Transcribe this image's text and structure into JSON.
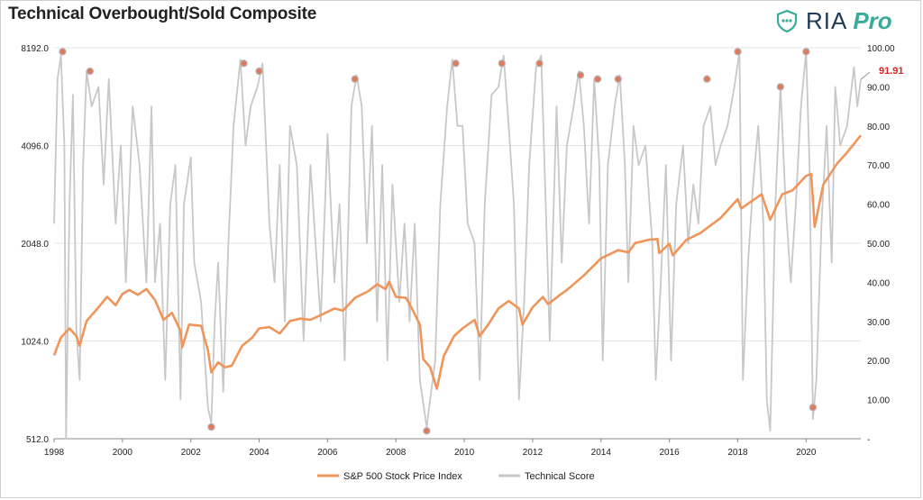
{
  "title": "Technical Overbought/Sold Composite",
  "logo": {
    "brand": "RIA",
    "suffix": "Pro",
    "icon": "shield-chat-icon",
    "brand_color": "#1f3b57",
    "accent_color": "#3aaa9a"
  },
  "chart_data": {
    "type": "line",
    "title": "Technical Overbought/Sold Composite",
    "x_range": [
      1998,
      2021.6
    ],
    "x_ticks": [
      "1998",
      "2000",
      "2002",
      "2004",
      "2006",
      "2008",
      "2010",
      "2012",
      "2014",
      "2016",
      "2018",
      "2020"
    ],
    "y_left": {
      "scale": "log2",
      "range": [
        512,
        8192
      ],
      "ticks": [
        "512.0",
        "1024.0",
        "2048.0",
        "4096.0",
        "8192.0"
      ]
    },
    "y_right": {
      "range": [
        0,
        100
      ],
      "ticks": [
        "-",
        "10.00",
        "20.00",
        "30.00",
        "40.00",
        "50.00",
        "60.00",
        "70.00",
        "80.00",
        "90.00",
        "100.00"
      ]
    },
    "grid": true,
    "legend_position": "bottom",
    "last_value_label": "91.91",
    "last_value_color": "#e02020",
    "series": [
      {
        "name": "S&P 500 Stock Price Index",
        "axis": "left",
        "color": "#f0955a",
        "points": [
          [
            1998.0,
            925
          ],
          [
            1998.2,
            1050
          ],
          [
            1998.45,
            1120
          ],
          [
            1998.65,
            1060
          ],
          [
            1998.75,
            990
          ],
          [
            1998.95,
            1180
          ],
          [
            1999.3,
            1300
          ],
          [
            1999.55,
            1400
          ],
          [
            1999.8,
            1320
          ],
          [
            2000.0,
            1430
          ],
          [
            2000.2,
            1470
          ],
          [
            2000.45,
            1420
          ],
          [
            2000.7,
            1480
          ],
          [
            2000.95,
            1370
          ],
          [
            2001.2,
            1190
          ],
          [
            2001.45,
            1250
          ],
          [
            2001.7,
            1100
          ],
          [
            2001.75,
            980
          ],
          [
            2001.95,
            1150
          ],
          [
            2002.3,
            1140
          ],
          [
            2002.5,
            960
          ],
          [
            2002.6,
            820
          ],
          [
            2002.8,
            880
          ],
          [
            2003.0,
            850
          ],
          [
            2003.2,
            860
          ],
          [
            2003.5,
            990
          ],
          [
            2003.8,
            1050
          ],
          [
            2004.0,
            1120
          ],
          [
            2004.3,
            1130
          ],
          [
            2004.6,
            1080
          ],
          [
            2004.9,
            1180
          ],
          [
            2005.2,
            1200
          ],
          [
            2005.5,
            1190
          ],
          [
            2005.8,
            1230
          ],
          [
            2006.2,
            1290
          ],
          [
            2006.45,
            1270
          ],
          [
            2006.8,
            1390
          ],
          [
            2007.2,
            1460
          ],
          [
            2007.45,
            1530
          ],
          [
            2007.7,
            1480
          ],
          [
            2007.8,
            1560
          ],
          [
            2008.0,
            1400
          ],
          [
            2008.3,
            1390
          ],
          [
            2008.5,
            1270
          ],
          [
            2008.7,
            1150
          ],
          [
            2008.8,
            900
          ],
          [
            2009.0,
            850
          ],
          [
            2009.2,
            730
          ],
          [
            2009.4,
            920
          ],
          [
            2009.7,
            1060
          ],
          [
            2009.95,
            1120
          ],
          [
            2010.3,
            1190
          ],
          [
            2010.45,
            1060
          ],
          [
            2010.7,
            1150
          ],
          [
            2011.0,
            1290
          ],
          [
            2011.3,
            1360
          ],
          [
            2011.6,
            1290
          ],
          [
            2011.7,
            1150
          ],
          [
            2012.0,
            1300
          ],
          [
            2012.3,
            1400
          ],
          [
            2012.45,
            1330
          ],
          [
            2012.8,
            1420
          ],
          [
            2013.0,
            1470
          ],
          [
            2013.5,
            1630
          ],
          [
            2014.0,
            1840
          ],
          [
            2014.5,
            1950
          ],
          [
            2014.8,
            1920
          ],
          [
            2015.0,
            2050
          ],
          [
            2015.4,
            2100
          ],
          [
            2015.65,
            2110
          ],
          [
            2015.7,
            1910
          ],
          [
            2016.0,
            2040
          ],
          [
            2016.1,
            1880
          ],
          [
            2016.5,
            2100
          ],
          [
            2016.9,
            2200
          ],
          [
            2017.5,
            2450
          ],
          [
            2018.0,
            2800
          ],
          [
            2018.1,
            2620
          ],
          [
            2018.7,
            2900
          ],
          [
            2018.95,
            2420
          ],
          [
            2019.3,
            2900
          ],
          [
            2019.6,
            2980
          ],
          [
            2020.0,
            3300
          ],
          [
            2020.15,
            3350
          ],
          [
            2020.25,
            2300
          ],
          [
            2020.5,
            3100
          ],
          [
            2020.9,
            3600
          ],
          [
            2021.2,
            3900
          ],
          [
            2021.6,
            4400
          ]
        ]
      },
      {
        "name": "Technical Score",
        "axis": "right",
        "color": "#c8c8c8",
        "points": [
          [
            1998.0,
            55
          ],
          [
            1998.1,
            92
          ],
          [
            1998.2,
            98
          ],
          [
            1998.3,
            75
          ],
          [
            1998.35,
            0
          ],
          [
            1998.45,
            60
          ],
          [
            1998.55,
            88
          ],
          [
            1998.65,
            28
          ],
          [
            1998.75,
            15
          ],
          [
            1998.85,
            70
          ],
          [
            1998.95,
            94
          ],
          [
            1999.1,
            85
          ],
          [
            1999.3,
            90
          ],
          [
            1999.45,
            65
          ],
          [
            1999.6,
            92
          ],
          [
            1999.8,
            55
          ],
          [
            1999.95,
            75
          ],
          [
            2000.1,
            40
          ],
          [
            2000.3,
            85
          ],
          [
            2000.5,
            70
          ],
          [
            2000.7,
            40
          ],
          [
            2000.85,
            85
          ],
          [
            2000.95,
            40
          ],
          [
            2001.1,
            55
          ],
          [
            2001.25,
            15
          ],
          [
            2001.4,
            60
          ],
          [
            2001.55,
            70
          ],
          [
            2001.7,
            10
          ],
          [
            2001.8,
            60
          ],
          [
            2002.0,
            72
          ],
          [
            2002.1,
            45
          ],
          [
            2002.3,
            35
          ],
          [
            2002.5,
            8
          ],
          [
            2002.6,
            4
          ],
          [
            2002.7,
            30
          ],
          [
            2002.8,
            45
          ],
          [
            2002.95,
            12
          ],
          [
            2003.1,
            50
          ],
          [
            2003.25,
            80
          ],
          [
            2003.45,
            97
          ],
          [
            2003.6,
            75
          ],
          [
            2003.75,
            85
          ],
          [
            2003.95,
            90
          ],
          [
            2004.1,
            96
          ],
          [
            2004.3,
            55
          ],
          [
            2004.45,
            40
          ],
          [
            2004.6,
            70
          ],
          [
            2004.75,
            30
          ],
          [
            2004.9,
            80
          ],
          [
            2005.1,
            70
          ],
          [
            2005.3,
            25
          ],
          [
            2005.5,
            70
          ],
          [
            2005.65,
            50
          ],
          [
            2005.8,
            30
          ],
          [
            2006.0,
            78
          ],
          [
            2006.2,
            40
          ],
          [
            2006.35,
            60
          ],
          [
            2006.5,
            20
          ],
          [
            2006.7,
            85
          ],
          [
            2006.85,
            93
          ],
          [
            2007.0,
            85
          ],
          [
            2007.15,
            50
          ],
          [
            2007.3,
            80
          ],
          [
            2007.45,
            30
          ],
          [
            2007.6,
            70
          ],
          [
            2007.75,
            20
          ],
          [
            2007.9,
            65
          ],
          [
            2008.1,
            35
          ],
          [
            2008.25,
            55
          ],
          [
            2008.4,
            30
          ],
          [
            2008.55,
            55
          ],
          [
            2008.7,
            15
          ],
          [
            2008.9,
            3
          ],
          [
            2009.0,
            10
          ],
          [
            2009.15,
            20
          ],
          [
            2009.3,
            60
          ],
          [
            2009.5,
            85
          ],
          [
            2009.65,
            97
          ],
          [
            2009.8,
            80
          ],
          [
            2009.95,
            80
          ],
          [
            2010.1,
            55
          ],
          [
            2010.3,
            50
          ],
          [
            2010.45,
            15
          ],
          [
            2010.6,
            60
          ],
          [
            2010.8,
            88
          ],
          [
            2011.0,
            90
          ],
          [
            2011.15,
            98
          ],
          [
            2011.3,
            80
          ],
          [
            2011.45,
            60
          ],
          [
            2011.6,
            10
          ],
          [
            2011.75,
            35
          ],
          [
            2011.9,
            70
          ],
          [
            2012.1,
            95
          ],
          [
            2012.25,
            98
          ],
          [
            2012.4,
            55
          ],
          [
            2012.5,
            25
          ],
          [
            2012.7,
            85
          ],
          [
            2012.85,
            45
          ],
          [
            2013.0,
            75
          ],
          [
            2013.2,
            85
          ],
          [
            2013.35,
            94
          ],
          [
            2013.5,
            80
          ],
          [
            2013.65,
            55
          ],
          [
            2013.8,
            92
          ],
          [
            2013.95,
            70
          ],
          [
            2014.05,
            20
          ],
          [
            2014.2,
            70
          ],
          [
            2014.4,
            85
          ],
          [
            2014.55,
            93
          ],
          [
            2014.7,
            70
          ],
          [
            2014.8,
            40
          ],
          [
            2014.95,
            80
          ],
          [
            2015.1,
            70
          ],
          [
            2015.3,
            75
          ],
          [
            2015.5,
            50
          ],
          [
            2015.6,
            15
          ],
          [
            2015.75,
            40
          ],
          [
            2015.9,
            70
          ],
          [
            2016.05,
            20
          ],
          [
            2016.2,
            60
          ],
          [
            2016.4,
            75
          ],
          [
            2016.55,
            50
          ],
          [
            2016.7,
            65
          ],
          [
            2016.85,
            55
          ],
          [
            2017.0,
            80
          ],
          [
            2017.2,
            85
          ],
          [
            2017.35,
            70
          ],
          [
            2017.5,
            75
          ],
          [
            2017.7,
            80
          ],
          [
            2017.9,
            90
          ],
          [
            2018.05,
            99
          ],
          [
            2018.15,
            15
          ],
          [
            2018.3,
            45
          ],
          [
            2018.45,
            65
          ],
          [
            2018.6,
            80
          ],
          [
            2018.75,
            55
          ],
          [
            2018.85,
            10
          ],
          [
            2018.95,
            2
          ],
          [
            2019.1,
            60
          ],
          [
            2019.25,
            90
          ],
          [
            2019.4,
            60
          ],
          [
            2019.55,
            40
          ],
          [
            2019.7,
            60
          ],
          [
            2019.85,
            85
          ],
          [
            2020.0,
            99
          ],
          [
            2020.1,
            70
          ],
          [
            2020.2,
            5
          ],
          [
            2020.3,
            15
          ],
          [
            2020.45,
            55
          ],
          [
            2020.6,
            80
          ],
          [
            2020.75,
            45
          ],
          [
            2020.85,
            90
          ],
          [
            2021.0,
            75
          ],
          [
            2021.2,
            80
          ],
          [
            2021.4,
            95
          ],
          [
            2021.5,
            85
          ],
          [
            2021.6,
            91.91
          ]
        ]
      }
    ],
    "markers": [
      {
        "x": 1998.25,
        "y": 99,
        "axis": "right"
      },
      {
        "x": 1999.05,
        "y": 94,
        "axis": "right"
      },
      {
        "x": 2003.55,
        "y": 96,
        "axis": "right"
      },
      {
        "x": 2004.0,
        "y": 94,
        "axis": "right"
      },
      {
        "x": 2006.8,
        "y": 92,
        "axis": "right"
      },
      {
        "x": 2009.75,
        "y": 96,
        "axis": "right"
      },
      {
        "x": 2011.1,
        "y": 96,
        "axis": "right"
      },
      {
        "x": 2012.2,
        "y": 96,
        "axis": "right"
      },
      {
        "x": 2013.4,
        "y": 93,
        "axis": "right"
      },
      {
        "x": 2013.9,
        "y": 92,
        "axis": "right"
      },
      {
        "x": 2014.5,
        "y": 92,
        "axis": "right"
      },
      {
        "x": 2017.1,
        "y": 92,
        "axis": "right"
      },
      {
        "x": 2018.0,
        "y": 99,
        "axis": "right"
      },
      {
        "x": 2019.25,
        "y": 90,
        "axis": "right"
      },
      {
        "x": 2020.0,
        "y": 99,
        "axis": "right"
      },
      {
        "x": 2002.6,
        "y": 3,
        "axis": "right"
      },
      {
        "x": 2008.9,
        "y": 2,
        "axis": "right"
      },
      {
        "x": 2020.2,
        "y": 8,
        "axis": "right"
      }
    ],
    "marker_color": "#e07a5f"
  }
}
